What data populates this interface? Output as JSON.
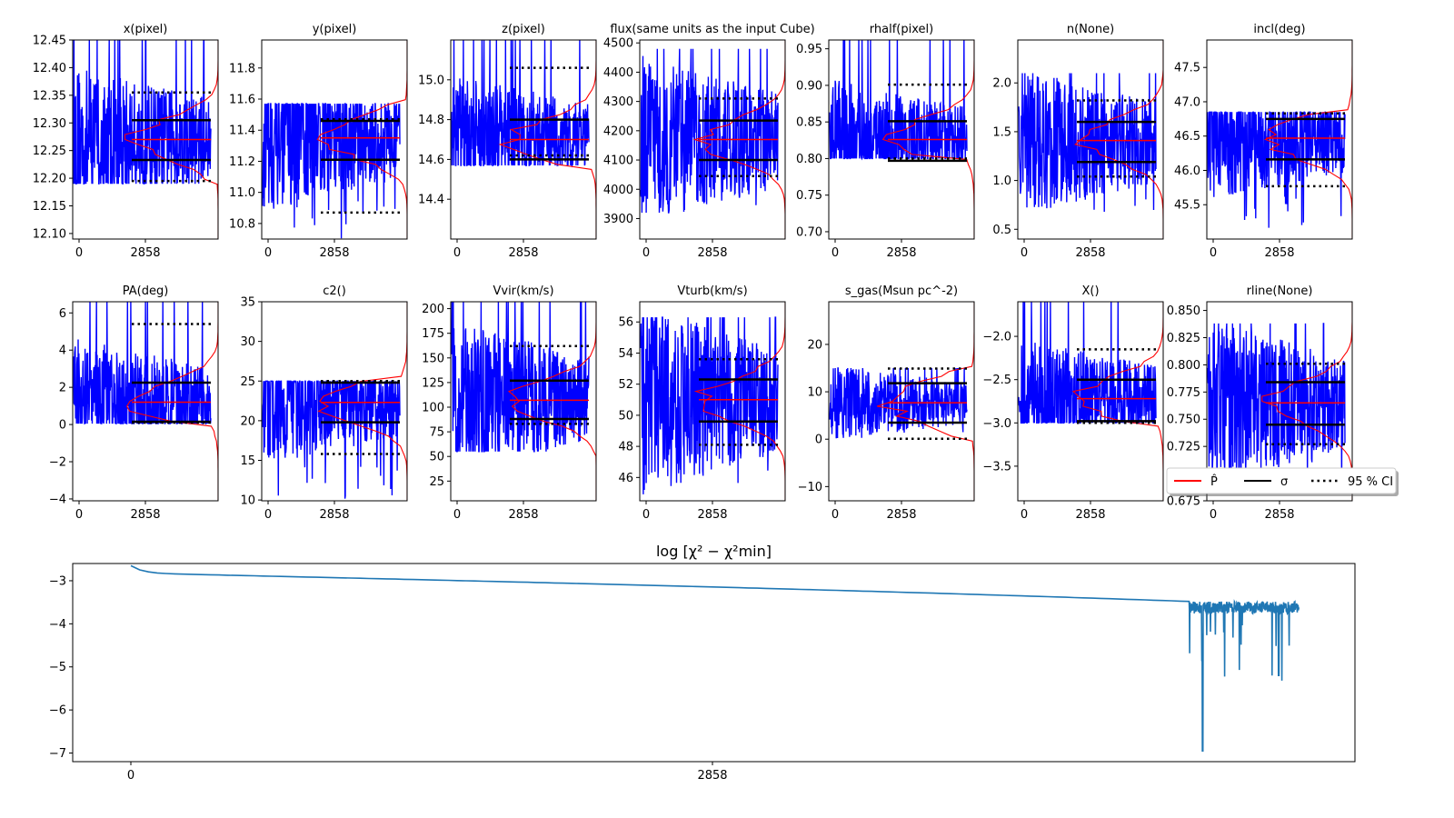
{
  "chart_data": [
    {
      "type": "line",
      "title": "x(pixel)",
      "ylim": [
        12.09,
        12.45
      ],
      "yticks": [
        "12.10",
        "12.15",
        "12.20",
        "12.25",
        "12.30",
        "12.35",
        "12.40",
        "12.45"
      ],
      "xticks": [
        "0",
        "2858"
      ],
      "trace_range": [
        12.19,
        12.45
      ],
      "estimate": 12.27,
      "sigma": [
        12.233,
        12.305
      ],
      "ci95": [
        12.195,
        12.355
      ]
    },
    {
      "type": "line",
      "title": "y(pixel)",
      "ylim": [
        10.7,
        11.98
      ],
      "yticks": [
        "10.8",
        "11.0",
        "11.2",
        "11.4",
        "11.6",
        "11.8"
      ],
      "xticks": [
        "0",
        "2858"
      ],
      "trace_range": [
        10.7,
        11.57
      ],
      "estimate": 11.35,
      "sigma": [
        11.21,
        11.46
      ],
      "ci95": [
        10.87,
        11.47
      ]
    },
    {
      "type": "line",
      "title": "z(pixel)",
      "ylim": [
        14.2,
        15.2
      ],
      "yticks": [
        "14.4",
        "14.6",
        "14.8",
        "15.0"
      ],
      "xticks": [
        "0",
        "2858"
      ],
      "trace_range": [
        14.57,
        15.2
      ],
      "estimate": 14.7,
      "sigma": [
        14.6,
        14.8
      ],
      "ci95": [
        14.62,
        15.06
      ]
    },
    {
      "type": "line",
      "title": "flux(same units as the input Cube)",
      "ylim": [
        3830,
        4510
      ],
      "yticks": [
        "3900",
        "4000",
        "4100",
        "4200",
        "4300",
        "4400",
        "4500"
      ],
      "xticks": [
        "0",
        "2858"
      ],
      "trace_range": [
        3920,
        4480
      ],
      "estimate": 4170,
      "sigma": [
        4100,
        4235
      ],
      "ci95": [
        4045,
        4310
      ]
    },
    {
      "type": "line",
      "title": "rhalf(pixel)",
      "ylim": [
        0.69,
        0.962
      ],
      "yticks": [
        "0.70",
        "0.75",
        "0.80",
        "0.85",
        "0.90",
        "0.95"
      ],
      "xticks": [
        "0",
        "2858"
      ],
      "trace_range": [
        0.8,
        0.962
      ],
      "estimate": 0.826,
      "sigma": [
        0.797,
        0.851
      ],
      "ci95": [
        0.8,
        0.901
      ]
    },
    {
      "type": "line",
      "title": "n(None)",
      "ylim": [
        0.4,
        2.44
      ],
      "yticks": [
        "0.5",
        "1.0",
        "1.5",
        "2.0"
      ],
      "xticks": [
        "0",
        "2858"
      ],
      "trace_range": [
        0.65,
        2.1
      ],
      "estimate": 1.41,
      "sigma": [
        1.19,
        1.6
      ],
      "ci95": [
        1.04,
        1.82
      ]
    },
    {
      "type": "line",
      "title": "incl(deg)",
      "ylim": [
        45.0,
        47.9
      ],
      "yticks": [
        "45.5",
        "46.0",
        "46.5",
        "47.0",
        "47.5"
      ],
      "xticks": [
        "0",
        "2858"
      ],
      "trace_range": [
        45.15,
        46.85
      ],
      "estimate": 46.47,
      "sigma": [
        46.16,
        46.75
      ],
      "ci95": [
        45.77,
        46.83
      ]
    },
    {
      "type": "line",
      "title": "PA(deg)",
      "ylim": [
        -4.1,
        6.6
      ],
      "yticks": [
        "−4",
        "−2",
        "0",
        "2",
        "4",
        "6"
      ],
      "xticks": [
        "0",
        "2858"
      ],
      "trace_range": [
        0.05,
        6.6
      ],
      "estimate": 1.2,
      "sigma": [
        0.15,
        2.25
      ],
      "ci95": [
        0.1,
        5.4
      ]
    },
    {
      "type": "line",
      "title": "c2()",
      "ylim": [
        9.9,
        35
      ],
      "yticks": [
        "10",
        "15",
        "20",
        "25",
        "30",
        "35"
      ],
      "xticks": [
        "0",
        "2858"
      ],
      "trace_range": [
        9.9,
        25
      ],
      "estimate": 22.3,
      "sigma": [
        19.8,
        24.8
      ],
      "ci95": [
        15.8,
        25
      ]
    },
    {
      "type": "line",
      "title": "Vvir(km/s)",
      "ylim": [
        5,
        207
      ],
      "yticks": [
        "25",
        "50",
        "75",
        "100",
        "125",
        "150",
        "175",
        "200"
      ],
      "xticks": [
        "0",
        "2858"
      ],
      "trace_range": [
        55,
        207
      ],
      "estimate": 107,
      "sigma": [
        88,
        127
      ],
      "ci95": [
        83,
        162
      ]
    },
    {
      "type": "line",
      "title": "Vturb(km/s)",
      "ylim": [
        44.5,
        57.3
      ],
      "yticks": [
        "46",
        "48",
        "50",
        "52",
        "54",
        "56"
      ],
      "xticks": [
        "0",
        "2858"
      ],
      "trace_range": [
        44.6,
        56.3
      ],
      "estimate": 51.0,
      "sigma": [
        49.6,
        52.3
      ],
      "ci95": [
        48.1,
        53.6
      ]
    },
    {
      "type": "line",
      "title": "s_gas(Msun pc^-2)",
      "ylim": [
        -13,
        29
      ],
      "yticks": [
        "−10",
        "0",
        "10",
        "20"
      ],
      "xticks": [
        "0",
        "2858"
      ],
      "trace_range": [
        0,
        15
      ],
      "estimate": 7.7,
      "sigma": [
        3.5,
        11.8
      ],
      "ci95": [
        0.1,
        14.9
      ]
    },
    {
      "type": "line",
      "title": "X()",
      "ylim": [
        -3.9,
        -1.6
      ],
      "yticks": [
        "−3.5",
        "−3.0",
        "−2.5",
        "−2.0"
      ],
      "xticks": [
        "0",
        "2858"
      ],
      "trace_range": [
        -3.0,
        -1.6
      ],
      "estimate": -2.72,
      "sigma": [
        -2.98,
        -2.5
      ],
      "ci95": [
        -3.0,
        -2.15
      ]
    },
    {
      "type": "line",
      "title": "rline(None)",
      "ylim": [
        0.675,
        0.858
      ],
      "yticks": [
        "0.675",
        "0.700",
        "0.725",
        "0.750",
        "0.775",
        "0.800",
        "0.825",
        "0.850"
      ],
      "xticks": [
        "0",
        "2858"
      ],
      "trace_range": [
        0.69,
        0.838
      ],
      "estimate": 0.765,
      "sigma": [
        0.745,
        0.784
      ],
      "ci95": [
        0.727,
        0.801
      ]
    },
    {
      "type": "line",
      "title": "log  [χ² − χ²min]",
      "ylim": [
        -7.2,
        -2.6
      ],
      "yticks": [
        "−7",
        "−6",
        "−5",
        "−4",
        "−3"
      ],
      "xticks": [
        "0",
        "2858"
      ],
      "x_range": [
        0,
        5740
      ],
      "x_tick_positions": [
        0,
        2858
      ],
      "start_value": -2.65,
      "flat_start_value": -2.82,
      "flat_end_value": -3.48,
      "flat_end_x": 5200,
      "noise_end_x": 5740,
      "noise_level": -3.62,
      "min_value": -6.95,
      "min_x": 5267
    }
  ],
  "legend": {
    "placement": "right of row 2",
    "entries": [
      {
        "label": "P̂",
        "color": "#ff0000",
        "style": "solid"
      },
      {
        "label": "σ",
        "color": "#000000",
        "style": "solid"
      },
      {
        "label": "95 % CI",
        "color": "#000000",
        "style": "dotted"
      }
    ]
  },
  "colors": {
    "trace": "#0000ff",
    "estimate": "#ff0000",
    "chi": "#1f77b4",
    "sigma": "#000000"
  }
}
